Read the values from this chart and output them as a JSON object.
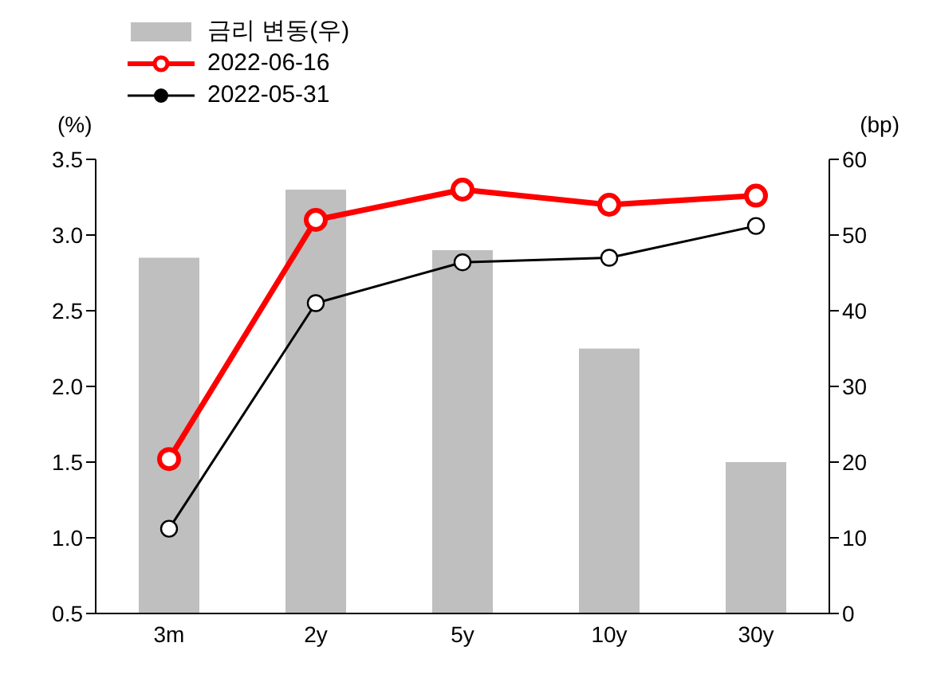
{
  "chart_data": {
    "type": "line",
    "ylabel": "(%)",
    "y2label": "(bp)",
    "categories": [
      "3m",
      "2y",
      "5y",
      "10y",
      "30y"
    ],
    "series": [
      {
        "name": "금리 변동(우)",
        "type": "bar",
        "axis": "y2",
        "color": "#bfbfbf",
        "values": [
          47,
          56,
          48,
          35,
          20
        ]
      },
      {
        "name": "2022-06-16",
        "color": "#ff0000",
        "values": [
          1.52,
          3.1,
          3.3,
          3.2,
          3.26
        ]
      },
      {
        "name": "2022-05-31",
        "color": "#000000",
        "values": [
          1.06,
          2.55,
          2.82,
          2.85,
          3.06
        ]
      }
    ],
    "ylim": [
      0.5,
      3.5
    ],
    "yticks": [
      {
        "value": 0.5,
        "label": "0.5"
      },
      {
        "value": 1,
        "label": "1.0"
      },
      {
        "value": 1.5,
        "label": "1.5"
      },
      {
        "value": 2,
        "label": "2.0"
      },
      {
        "value": 2.5,
        "label": "2.5"
      },
      {
        "value": 3,
        "label": "3.0"
      },
      {
        "value": 3.5,
        "label": "3.5"
      }
    ],
    "y2lim": [
      0,
      60
    ],
    "y2ticks": [
      0,
      10,
      20,
      30,
      40,
      50,
      60
    ],
    "grid": false,
    "legend": "top left",
    "marker": "circle"
  }
}
